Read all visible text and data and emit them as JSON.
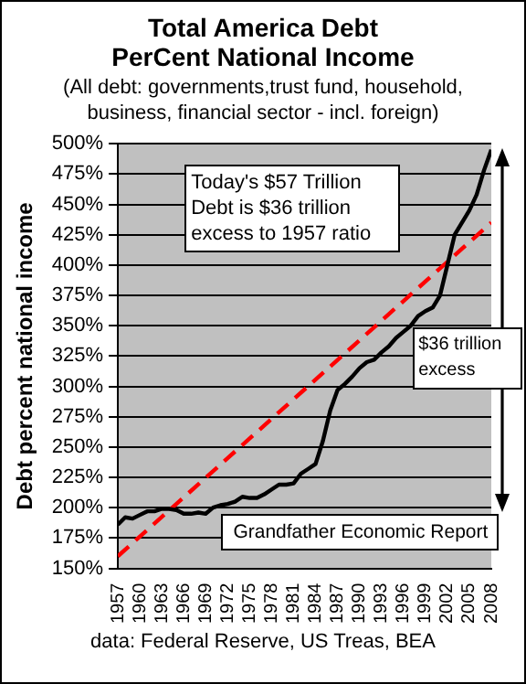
{
  "chart_data": {
    "type": "line",
    "title": "Total America Debt PerCent National Income",
    "subtitle": "(All debt: governments,trust fund, household, business, financial sector - incl. foreign)",
    "ylabel": "Debt percent national income",
    "x": [
      1957,
      1958,
      1959,
      1960,
      1961,
      1962,
      1963,
      1964,
      1965,
      1966,
      1967,
      1968,
      1969,
      1970,
      1971,
      1972,
      1973,
      1974,
      1975,
      1976,
      1977,
      1978,
      1979,
      1980,
      1981,
      1982,
      1983,
      1984,
      1985,
      1986,
      1987,
      1988,
      1989,
      1990,
      1991,
      1992,
      1993,
      1994,
      1995,
      1996,
      1997,
      1998,
      1999,
      2000,
      2001,
      2002,
      2003,
      2004,
      2005,
      2006,
      2007,
      2008
    ],
    "series": [
      {
        "color": "#000000",
        "line_style": "solid",
        "values": [
          186,
          192,
          191,
          194,
          197,
          197,
          199,
          199,
          198,
          195,
          195,
          196,
          195,
          200,
          202,
          203,
          205,
          209,
          208,
          208,
          211,
          215,
          219,
          219,
          220,
          228,
          232,
          236,
          255,
          280,
          297,
          302,
          308,
          315,
          320,
          322,
          328,
          333,
          340,
          345,
          350,
          358,
          362,
          365,
          375,
          400,
          425,
          435,
          445,
          458,
          478,
          495
        ]
      },
      {
        "color": "#ff0000",
        "line_style": "dashed",
        "x": [
          1957,
          2008
        ],
        "values": [
          160,
          435
        ]
      }
    ],
    "xlim": [
      1957,
      2008
    ],
    "xticks": [
      1957,
      1960,
      1963,
      1966,
      1969,
      1972,
      1975,
      1978,
      1981,
      1984,
      1987,
      1990,
      1993,
      1996,
      1999,
      2002,
      2005,
      2008
    ],
    "ylim": [
      150,
      500
    ],
    "yticks": [
      {
        "value": 150,
        "label": "150%"
      },
      {
        "value": 175,
        "label": "175%"
      },
      {
        "value": 200,
        "label": "200%"
      },
      {
        "value": 225,
        "label": "225%"
      },
      {
        "value": 250,
        "label": "250%"
      },
      {
        "value": 275,
        "label": "275%"
      },
      {
        "value": 300,
        "label": "300%"
      },
      {
        "value": 325,
        "label": "325%"
      },
      {
        "value": 350,
        "label": "350%"
      },
      {
        "value": 375,
        "label": "375%"
      },
      {
        "value": 400,
        "label": "400%"
      },
      {
        "value": 425,
        "label": "425%"
      },
      {
        "value": 450,
        "label": "450%"
      },
      {
        "value": 475,
        "label": "475%"
      },
      {
        "value": 500,
        "label": "500%"
      }
    ],
    "grid": "y",
    "legend": false,
    "marker": "none",
    "annotations": [
      "Today's $57 Trillion Debt is $36 trillion excess to 1957 ratio",
      "$36 trillion excess",
      "Grandfather Economic Report",
      "data: Federal Reserve, US Treas, BEA"
    ]
  }
}
